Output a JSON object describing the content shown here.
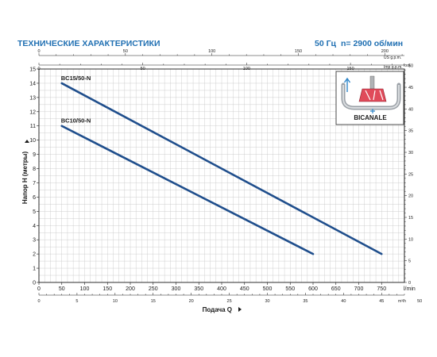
{
  "header": {
    "title": "ТЕХНИЧЕСКИЕ ХАРАКТЕРИСТИКИ",
    "freq": "50 Гц",
    "speed": "n= 2900 об/мин"
  },
  "inset": {
    "label": "BICANALE"
  },
  "chart_data": {
    "type": "line",
    "xlabel": "Подача Q",
    "ylabel": "Напор H  (метры)",
    "x_unit": "l/min",
    "xlim": [
      0,
      800
    ],
    "ylim": [
      0,
      15
    ],
    "x_ticks": [
      0,
      50,
      100,
      150,
      200,
      250,
      300,
      350,
      400,
      450,
      500,
      550,
      600,
      650,
      700,
      750
    ],
    "y_ticks": [
      0,
      1,
      2,
      3,
      4,
      5,
      6,
      7,
      8,
      9,
      10,
      11,
      12,
      13,
      14,
      15
    ],
    "secondary_axes": {
      "top_us_gpm": {
        "unit": "US g.p.m.",
        "ticks": [
          0,
          50,
          100,
          150,
          200
        ]
      },
      "top_imp_gpm": {
        "unit": "Imp g.p.m.",
        "ticks": [
          0,
          50,
          100,
          150
        ]
      },
      "bottom_m3h": {
        "unit": "m³/h",
        "ticks": [
          0,
          5,
          10,
          15,
          20,
          25,
          30,
          35,
          40,
          45,
          50
        ]
      },
      "right_foot": {
        "unit": "foot",
        "ticks": [
          0,
          5,
          10,
          15,
          20,
          25,
          30,
          35,
          40,
          45,
          50
        ]
      }
    },
    "series": [
      {
        "name": "BC15/50-N",
        "x": [
          50,
          750
        ],
        "y": [
          14,
          2
        ]
      },
      {
        "name": "BC10/50-N",
        "x": [
          50,
          600
        ],
        "y": [
          11,
          2
        ]
      }
    ],
    "grid": true,
    "colors": {
      "line": "#1f4e8c",
      "grid": "#c4c4c4",
      "header": "#1f6fb2"
    }
  }
}
